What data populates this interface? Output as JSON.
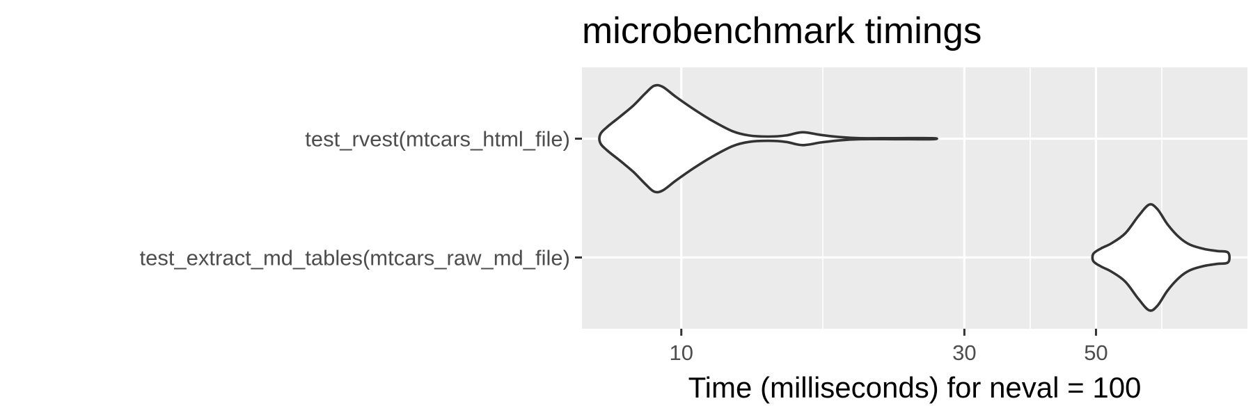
{
  "chart_data": {
    "type": "violin",
    "title": "microbenchmark timings",
    "xlabel": "Time (milliseconds) for neval = 100",
    "ylabel": "",
    "x_scale": "log10",
    "x_ticks": [
      10,
      30,
      50
    ],
    "x_tick_labels": [
      "10",
      "30",
      "50"
    ],
    "xlim": [
      6.8,
      90
    ],
    "grid": true,
    "panel_background": "#ebebeb",
    "grid_color": "#ffffff",
    "violin_fill": "#ffffff",
    "violin_stroke": "#333333",
    "series": [
      {
        "label": "test_rvest(mtcars_html_file)",
        "min": 7.3,
        "max": 26.5,
        "density": [
          [
            7.3,
            0.08
          ],
          [
            7.5,
            0.22
          ],
          [
            7.9,
            0.42
          ],
          [
            8.3,
            0.62
          ],
          [
            8.7,
            0.85
          ],
          [
            9.0,
            0.99
          ],
          [
            9.3,
            0.97
          ],
          [
            9.8,
            0.78
          ],
          [
            10.5,
            0.55
          ],
          [
            11.3,
            0.33
          ],
          [
            12.2,
            0.14
          ],
          [
            13.0,
            0.06
          ],
          [
            14.0,
            0.04
          ],
          [
            15.0,
            0.06
          ],
          [
            16.0,
            0.12
          ],
          [
            17.2,
            0.07
          ],
          [
            18.5,
            0.03
          ],
          [
            20.0,
            0.01
          ],
          [
            23.0,
            0.01
          ],
          [
            26.5,
            0.01
          ]
        ]
      },
      {
        "label": "test_extract_md_tables(mtcars_raw_md_file)",
        "min": 49.5,
        "max": 83.5,
        "density": [
          [
            49.5,
            0.07
          ],
          [
            51.0,
            0.17
          ],
          [
            53.0,
            0.26
          ],
          [
            56.0,
            0.45
          ],
          [
            59.0,
            0.78
          ],
          [
            61.5,
            0.99
          ],
          [
            63.5,
            0.9
          ],
          [
            66.0,
            0.62
          ],
          [
            69.0,
            0.38
          ],
          [
            72.0,
            0.24
          ],
          [
            76.0,
            0.16
          ],
          [
            80.0,
            0.12
          ],
          [
            83.5,
            0.09
          ]
        ]
      }
    ]
  }
}
